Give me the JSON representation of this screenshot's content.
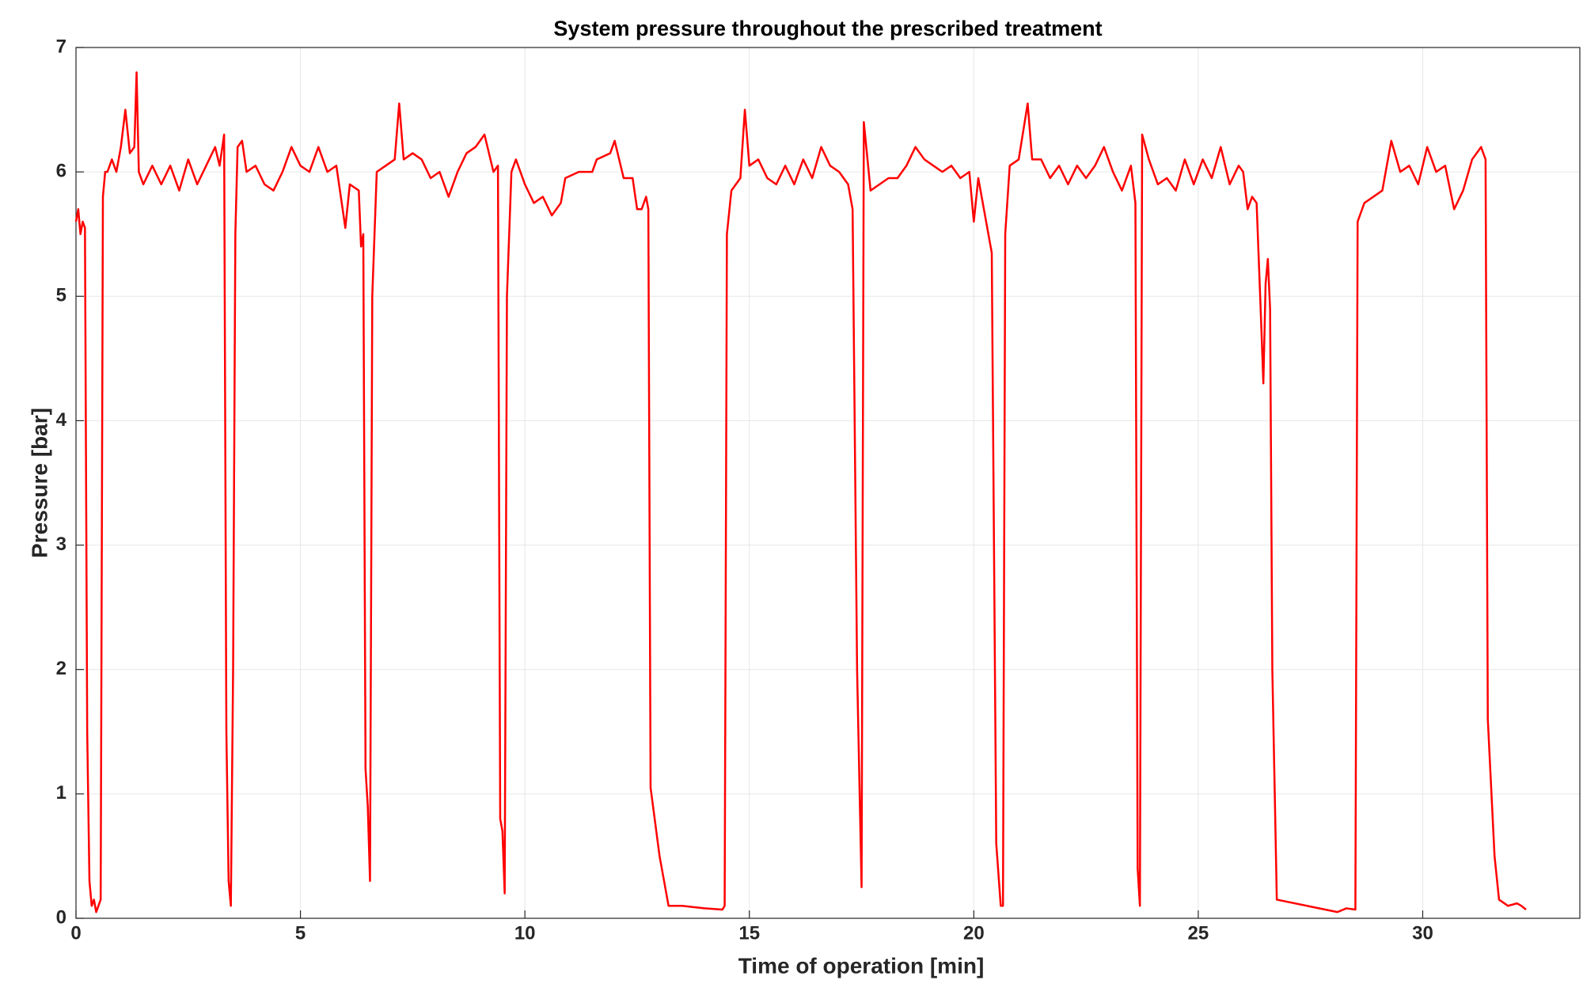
{
  "chart_data": {
    "type": "line",
    "title": "System pressure throughout the prescribed treatment",
    "x_label": "Time of operation [min]",
    "y_label": "Pressure [bar]",
    "color": "#ff0000",
    "grid": true,
    "xlim": [
      0,
      33.5
    ],
    "ylim": [
      0,
      7
    ],
    "xticks": [
      0,
      5,
      10,
      15,
      20,
      25,
      30
    ],
    "yticks": [
      0,
      1,
      2,
      3,
      4,
      5,
      6,
      7
    ],
    "x": [
      0,
      0.05,
      0.1,
      0.15,
      0.2,
      0.25,
      0.3,
      0.35,
      0.4,
      0.45,
      0.5,
      0.55,
      0.6,
      0.65,
      0.7,
      0.8,
      0.9,
      1.0,
      1.1,
      1.2,
      1.3,
      1.35,
      1.4,
      1.5,
      1.7,
      1.9,
      2.1,
      2.3,
      2.5,
      2.7,
      2.9,
      3.1,
      3.2,
      3.3,
      3.35,
      3.4,
      3.45,
      3.5,
      3.55,
      3.6,
      3.7,
      3.8,
      4.0,
      4.2,
      4.4,
      4.6,
      4.8,
      5.0,
      5.2,
      5.4,
      5.6,
      5.8,
      6.0,
      6.1,
      6.3,
      6.35,
      6.4,
      6.45,
      6.5,
      6.55,
      6.6,
      6.7,
      6.9,
      7.1,
      7.2,
      7.3,
      7.5,
      7.7,
      7.9,
      8.1,
      8.3,
      8.5,
      8.7,
      8.9,
      9.1,
      9.3,
      9.4,
      9.45,
      9.5,
      9.55,
      9.6,
      9.7,
      9.8,
      10.0,
      10.2,
      10.4,
      10.6,
      10.8,
      10.9,
      11.2,
      11.5,
      11.6,
      11.9,
      12.0,
      12.2,
      12.4,
      12.5,
      12.6,
      12.7,
      12.75,
      12.8,
      13.0,
      13.2,
      13.5,
      14.0,
      14.4,
      14.45,
      14.5,
      14.6,
      14.8,
      14.9,
      15.0,
      15.2,
      15.4,
      15.6,
      15.8,
      16.0,
      16.2,
      16.4,
      16.6,
      16.8,
      17.0,
      17.2,
      17.3,
      17.4,
      17.5,
      17.55,
      17.7,
      17.9,
      18.1,
      18.3,
      18.5,
      18.7,
      18.9,
      19.1,
      19.3,
      19.5,
      19.7,
      19.9,
      20.0,
      20.1,
      20.3,
      20.4,
      20.5,
      20.6,
      20.65,
      20.7,
      20.8,
      21.0,
      21.2,
      21.3,
      21.5,
      21.7,
      21.9,
      22.1,
      22.3,
      22.5,
      22.7,
      22.9,
      23.1,
      23.3,
      23.5,
      23.6,
      23.65,
      23.7,
      23.75,
      23.9,
      24.1,
      24.3,
      24.5,
      24.7,
      24.9,
      25.1,
      25.3,
      25.5,
      25.7,
      25.9,
      26.0,
      26.1,
      26.2,
      26.3,
      26.4,
      26.45,
      26.5,
      26.55,
      26.6,
      26.65,
      26.75,
      28.1,
      28.3,
      28.5,
      28.55,
      28.7,
      28.9,
      29.1,
      29.3,
      29.5,
      29.7,
      29.9,
      30.1,
      30.3,
      30.5,
      30.7,
      30.9,
      31.1,
      31.3,
      31.4,
      31.45,
      31.6,
      31.7,
      31.9,
      32.1,
      32.2,
      32.3
    ],
    "values": [
      5.6,
      5.7,
      5.5,
      5.6,
      5.55,
      1.5,
      0.3,
      0.1,
      0.15,
      0.05,
      0.1,
      0.15,
      5.8,
      6.0,
      6.0,
      6.1,
      6.0,
      6.2,
      6.5,
      6.15,
      6.2,
      6.8,
      6.0,
      5.9,
      6.05,
      5.9,
      6.05,
      5.85,
      6.1,
      5.9,
      6.05,
      6.2,
      6.05,
      6.3,
      1.5,
      0.3,
      0.1,
      2,
      5.5,
      6.2,
      6.25,
      6.0,
      6.05,
      5.9,
      5.85,
      6.0,
      6.2,
      6.05,
      6.0,
      6.2,
      6.0,
      6.05,
      5.55,
      5.9,
      5.85,
      5.4,
      5.5,
      1.2,
      0.9,
      0.3,
      5.0,
      6.0,
      6.05,
      6.1,
      6.55,
      6.1,
      6.15,
      6.1,
      5.95,
      6.0,
      5.8,
      6.0,
      6.15,
      6.2,
      6.3,
      6.0,
      6.05,
      0.8,
      0.7,
      0.2,
      5.0,
      6.0,
      6.1,
      5.9,
      5.75,
      5.8,
      5.65,
      5.75,
      5.95,
      6.0,
      6.0,
      6.1,
      6.15,
      6.25,
      5.95,
      5.95,
      5.7,
      5.7,
      5.8,
      5.7,
      1.05,
      0.5,
      0.1,
      0.1,
      0.08,
      0.07,
      0.1,
      5.5,
      5.85,
      5.95,
      6.5,
      6.05,
      6.1,
      5.95,
      5.9,
      6.05,
      5.9,
      6.1,
      5.95,
      6.2,
      6.05,
      6.0,
      5.9,
      5.7,
      2,
      0.25,
      6.4,
      5.85,
      5.9,
      5.95,
      5.95,
      6.05,
      6.2,
      6.1,
      6.05,
      6.0,
      6.05,
      5.95,
      6.0,
      5.6,
      5.95,
      5.55,
      5.35,
      0.6,
      0.1,
      0.1,
      5.5,
      6.05,
      6.1,
      6.55,
      6.1,
      6.1,
      5.95,
      6.05,
      5.9,
      6.05,
      5.95,
      6.05,
      6.2,
      6.0,
      5.85,
      6.05,
      5.75,
      0.4,
      0.1,
      6.3,
      6.1,
      5.9,
      5.95,
      5.85,
      6.1,
      5.9,
      6.1,
      5.95,
      6.2,
      5.9,
      6.05,
      6.0,
      5.7,
      5.8,
      5.75,
      4.8,
      4.3,
      5.1,
      5.3,
      4.9,
      2.0,
      0.15,
      0.05,
      0.08,
      0.07,
      5.6,
      5.75,
      5.8,
      5.85,
      6.25,
      6.0,
      6.05,
      5.9,
      6.2,
      6.0,
      6.05,
      5.7,
      5.85,
      6.1,
      6.2,
      6.1,
      1.6,
      0.5,
      0.15,
      0.1,
      0.12,
      0.1,
      0.07
    ]
  }
}
